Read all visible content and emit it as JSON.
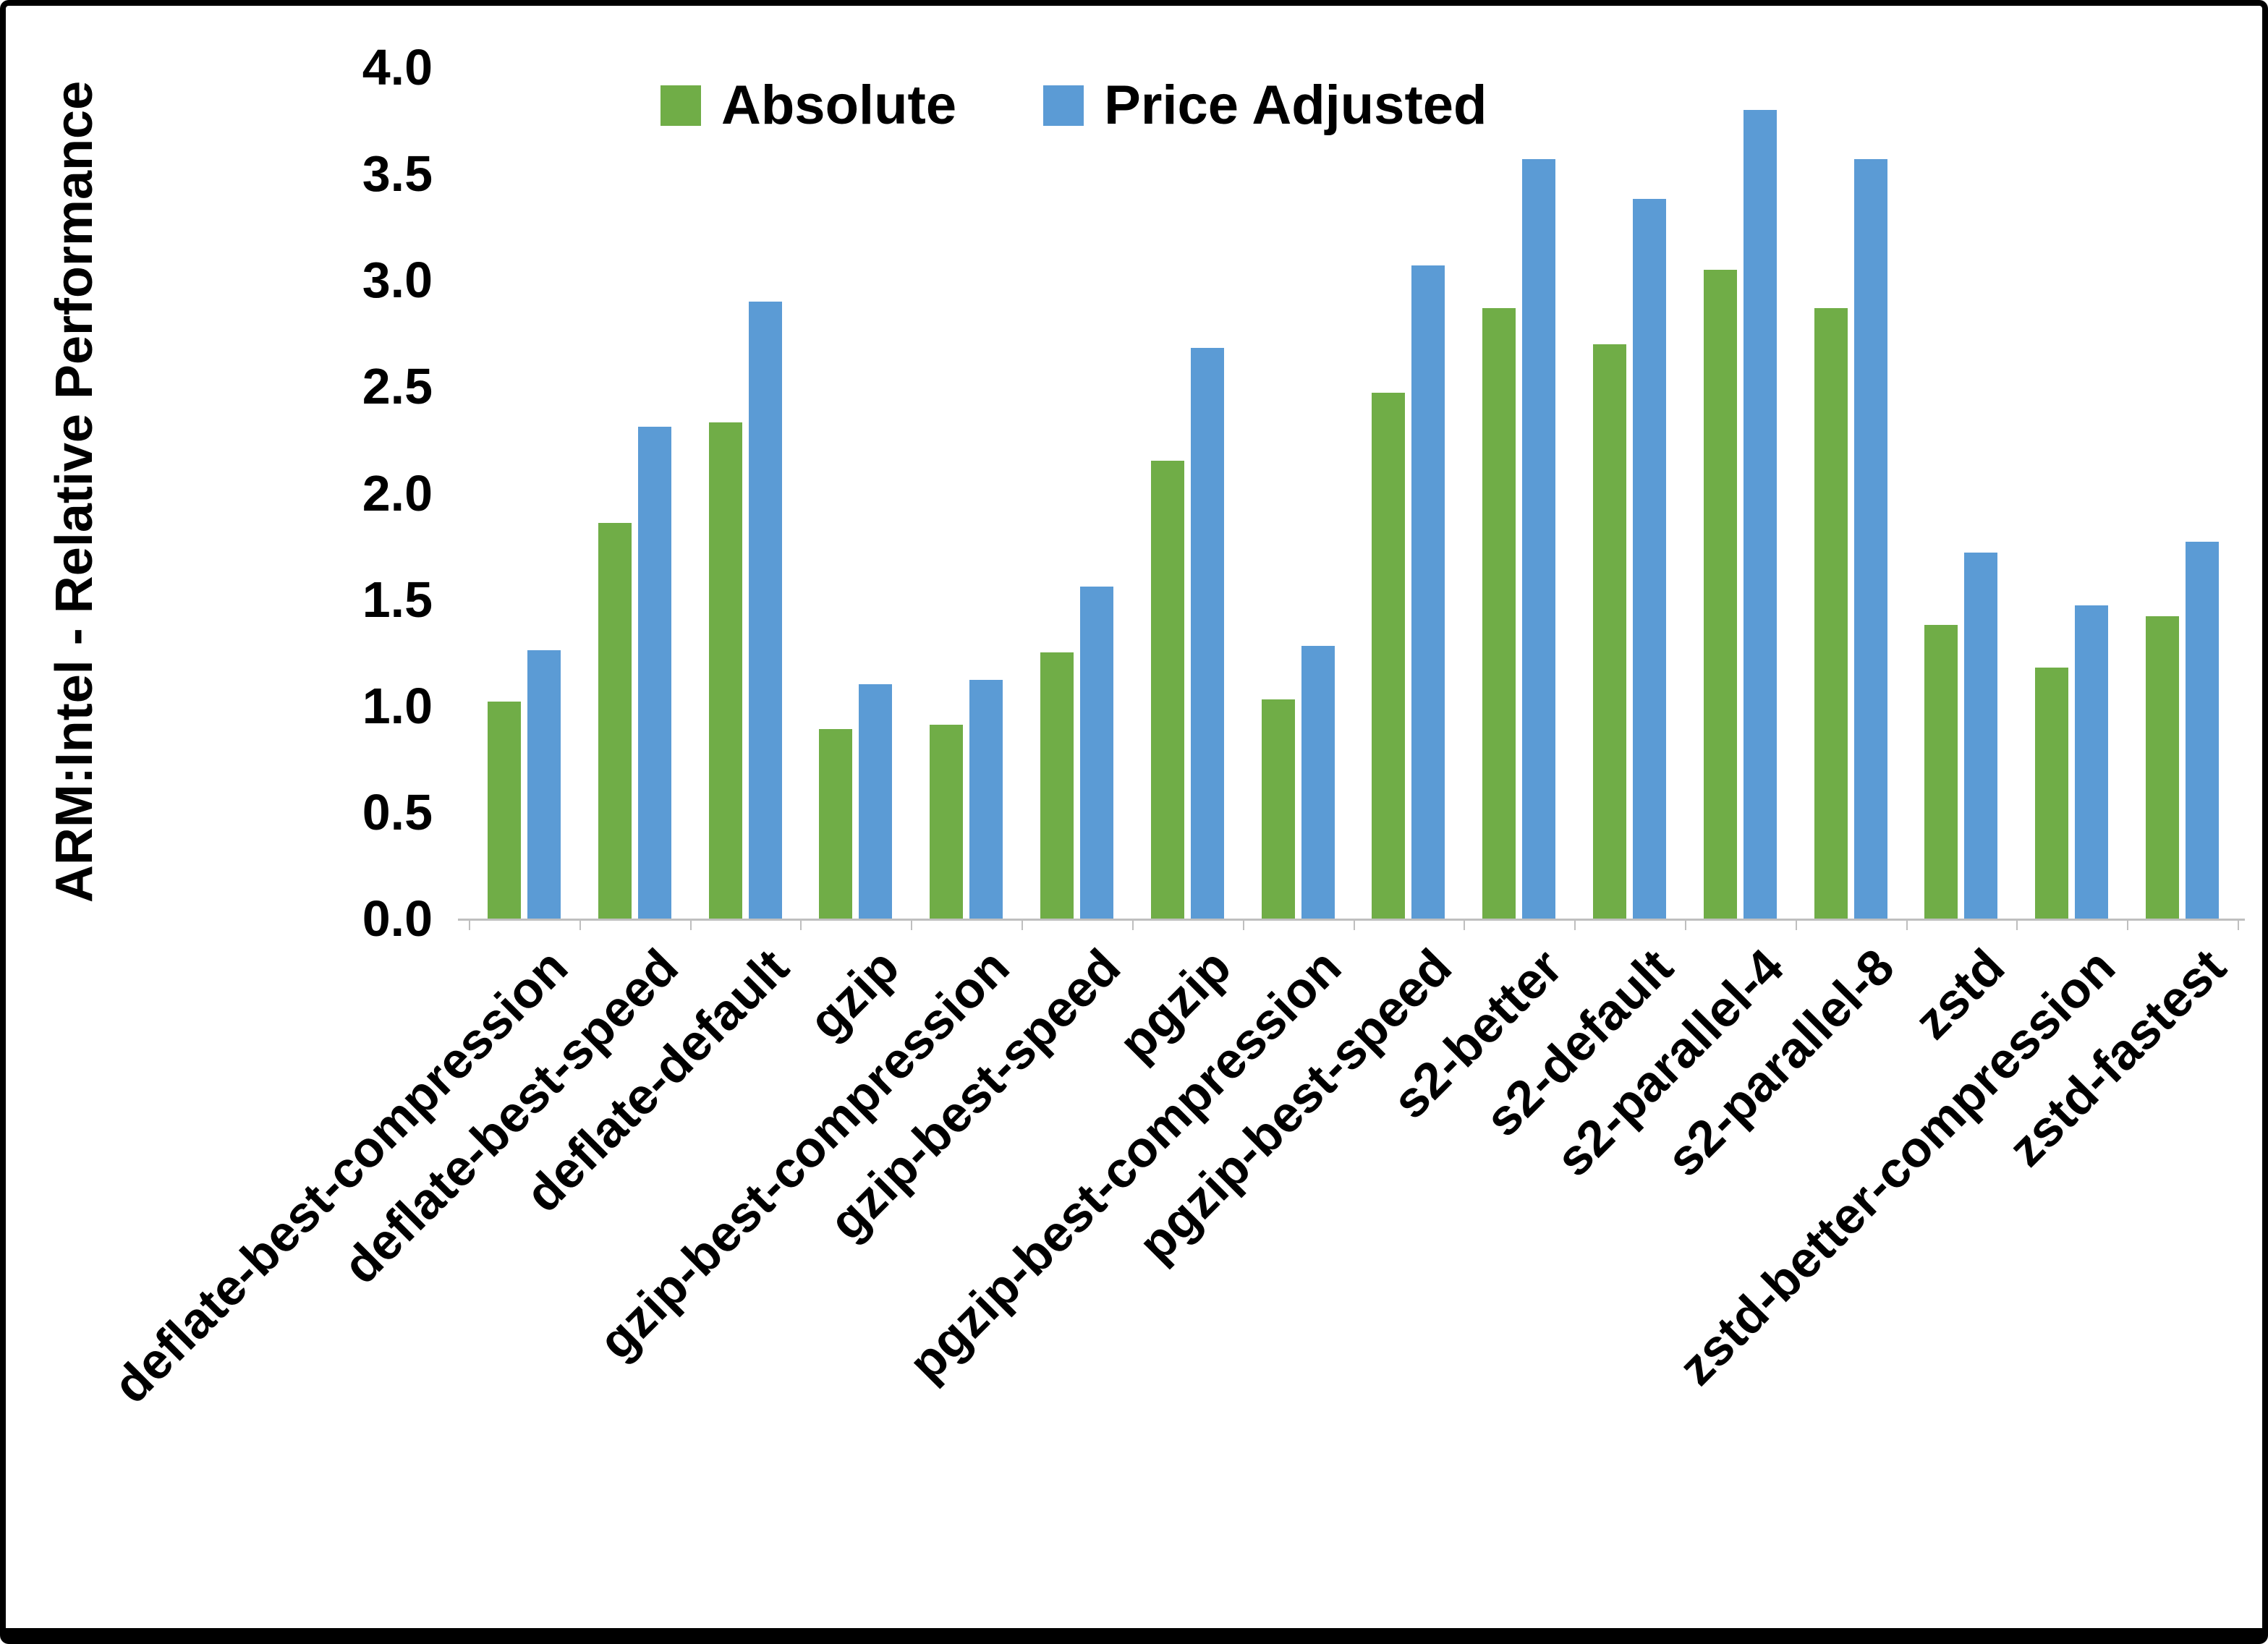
{
  "chart_data": {
    "type": "bar",
    "title": "",
    "xlabel": "",
    "ylabel": "ARM:Intel - Relative Performance",
    "ylim": [
      0,
      4.0
    ],
    "ytick_step": 0.5,
    "grid": false,
    "legend_position": "top",
    "axis_color": "#bfbfbf",
    "categories": [
      "deflate-best-compression",
      "deflate-best-speed",
      "deflate-default",
      "gzip",
      "gzip-best-compression",
      "gzip-best-speed",
      "pgzip",
      "pgzip-best-compression",
      "pgzip-best-speed",
      "s2-better",
      "s2-default",
      "s2-parallel-4",
      "s2-parallel-8",
      "zstd",
      "zstd-better-compression",
      "zstd-fastest"
    ],
    "series": [
      {
        "name": "Absolute",
        "color": "#70AD47",
        "values": [
          1.02,
          1.86,
          2.33,
          0.89,
          0.91,
          1.25,
          2.15,
          1.03,
          2.47,
          2.87,
          2.7,
          3.05,
          2.87,
          1.38,
          1.18,
          1.42
        ]
      },
      {
        "name": "Price Adjusted",
        "color": "#5B9BD5",
        "values": [
          1.26,
          2.31,
          2.9,
          1.1,
          1.12,
          1.56,
          2.68,
          1.28,
          3.07,
          3.57,
          3.38,
          3.8,
          3.57,
          1.72,
          1.47,
          1.77
        ]
      }
    ]
  }
}
